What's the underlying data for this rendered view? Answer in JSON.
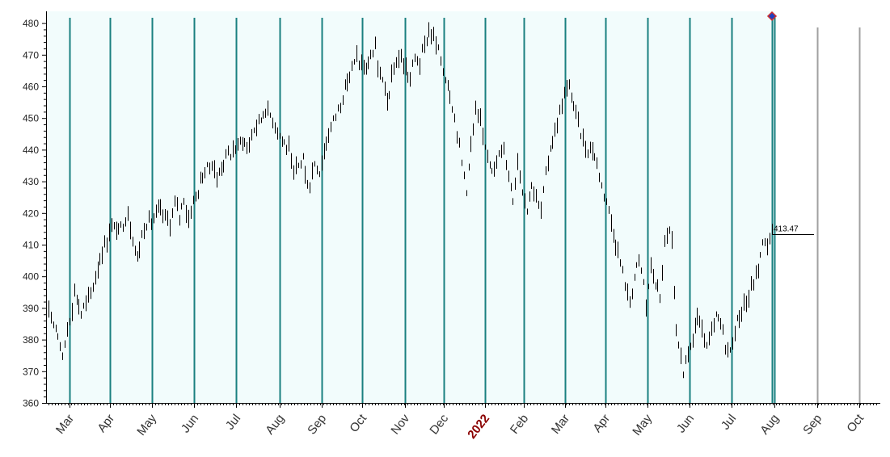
{
  "chart_data": {
    "type": "bar",
    "subtype": "ohlc-daily-range",
    "title": "",
    "xlabel": "",
    "ylabel": "",
    "ylim": [
      360,
      480
    ],
    "yticks": [
      360,
      370,
      380,
      390,
      400,
      410,
      420,
      430,
      440,
      450,
      460,
      470,
      480
    ],
    "grid": "vertical month lines",
    "legend": "none",
    "colors": {
      "plot_background": "#f2fcfc",
      "month_line": "#1a8080",
      "month_line_future": "#a0a0a0",
      "bars": "#000000",
      "axis": "#000000",
      "marker_fill": "#2040c0",
      "marker_outline": "#d03030",
      "year_label": "#8b0000"
    },
    "month_labels": [
      "Mar",
      "Apr",
      "May",
      "Jun",
      "Jul",
      "Aug",
      "Sep",
      "Oct",
      "Nov",
      "Dec",
      "2022",
      "Feb",
      "Mar",
      "Apr",
      "May",
      "Jun",
      "Jul",
      "Aug",
      "Sep",
      "Oct"
    ],
    "month_label_is_year": [
      false,
      false,
      false,
      false,
      false,
      false,
      false,
      false,
      false,
      false,
      true,
      false,
      false,
      false,
      false,
      false,
      false,
      false,
      false,
      false
    ],
    "month_line_future": [
      false,
      false,
      false,
      false,
      false,
      false,
      false,
      false,
      false,
      false,
      false,
      false,
      false,
      false,
      false,
      false,
      false,
      false,
      true,
      true
    ],
    "last_value": "413.47",
    "anchors": [
      [
        0,
        391
      ],
      [
        3,
        386
      ],
      [
        5,
        382
      ],
      [
        7,
        374
      ],
      [
        9,
        384
      ],
      [
        11,
        390
      ],
      [
        12,
        396
      ],
      [
        15,
        388
      ],
      [
        16,
        390
      ],
      [
        20,
        397
      ],
      [
        22,
        404
      ],
      [
        26,
        412
      ],
      [
        28,
        416
      ],
      [
        31,
        414
      ],
      [
        33,
        417
      ],
      [
        35,
        420
      ],
      [
        37,
        412
      ],
      [
        39,
        406
      ],
      [
        41,
        413
      ],
      [
        43,
        417
      ],
      [
        46,
        418
      ],
      [
        48,
        421
      ],
      [
        51,
        419
      ],
      [
        53,
        417
      ],
      [
        55,
        423
      ],
      [
        57,
        419
      ],
      [
        59,
        425
      ],
      [
        61,
        418
      ],
      [
        63,
        424
      ],
      [
        65,
        427
      ],
      [
        67,
        432
      ],
      [
        69,
        434
      ],
      [
        71,
        436
      ],
      [
        73,
        431
      ],
      [
        75,
        435
      ],
      [
        77,
        438
      ],
      [
        79,
        439
      ],
      [
        82,
        441
      ],
      [
        84,
        444
      ],
      [
        86,
        440
      ],
      [
        88,
        445
      ],
      [
        90,
        448
      ],
      [
        92,
        450
      ],
      [
        94,
        453
      ],
      [
        96,
        451
      ],
      [
        98,
        448
      ],
      [
        100,
        445
      ],
      [
        102,
        442
      ],
      [
        104,
        440
      ],
      [
        106,
        432
      ],
      [
        108,
        435
      ],
      [
        110,
        438
      ],
      [
        111,
        431
      ],
      [
        113,
        429
      ],
      [
        115,
        436
      ],
      [
        117,
        433
      ],
      [
        119,
        440
      ],
      [
        121,
        445
      ],
      [
        123,
        449
      ],
      [
        125,
        453
      ],
      [
        127,
        457
      ],
      [
        129,
        462
      ],
      [
        131,
        466
      ],
      [
        133,
        469
      ],
      [
        135,
        467
      ],
      [
        137,
        465
      ],
      [
        139,
        470
      ],
      [
        141,
        472
      ],
      [
        142,
        466
      ],
      [
        144,
        461
      ],
      [
        146,
        456
      ],
      [
        148,
        462
      ],
      [
        150,
        468
      ],
      [
        152,
        470
      ],
      [
        154,
        465
      ],
      [
        156,
        463
      ],
      [
        158,
        469
      ],
      [
        160,
        468
      ],
      [
        162,
        473
      ],
      [
        164,
        478
      ],
      [
        166,
        476
      ],
      [
        168,
        471
      ],
      [
        170,
        465
      ],
      [
        172,
        461
      ],
      [
        174,
        454
      ],
      [
        176,
        446
      ],
      [
        178,
        436
      ],
      [
        180,
        428
      ],
      [
        182,
        441
      ],
      [
        184,
        452
      ],
      [
        186,
        448
      ],
      [
        188,
        442
      ],
      [
        190,
        437
      ],
      [
        192,
        433
      ],
      [
        194,
        438
      ],
      [
        196,
        441
      ],
      [
        198,
        432
      ],
      [
        200,
        425
      ],
      [
        202,
        437
      ],
      [
        204,
        428
      ],
      [
        206,
        421
      ],
      [
        208,
        430
      ],
      [
        210,
        424
      ],
      [
        212,
        421
      ],
      [
        214,
        432
      ],
      [
        216,
        441
      ],
      [
        218,
        446
      ],
      [
        220,
        452
      ],
      [
        222,
        457
      ],
      [
        224,
        460
      ],
      [
        226,
        454
      ],
      [
        228,
        449
      ],
      [
        230,
        443
      ],
      [
        232,
        440
      ],
      [
        234,
        441
      ],
      [
        236,
        435
      ],
      [
        238,
        429
      ],
      [
        240,
        424
      ],
      [
        242,
        418
      ],
      [
        244,
        411
      ],
      [
        246,
        404
      ],
      [
        248,
        398
      ],
      [
        250,
        392
      ],
      [
        252,
        400
      ],
      [
        254,
        405
      ],
      [
        256,
        398
      ],
      [
        257,
        391
      ],
      [
        259,
        403
      ],
      [
        261,
        398
      ],
      [
        263,
        393
      ],
      [
        265,
        411
      ],
      [
        267,
        414
      ],
      [
        268,
        410
      ],
      [
        269,
        393
      ],
      [
        270,
        382
      ],
      [
        272,
        375
      ],
      [
        273,
        370
      ],
      [
        275,
        375
      ],
      [
        277,
        381
      ],
      [
        279,
        387
      ],
      [
        281,
        383
      ],
      [
        283,
        377
      ],
      [
        285,
        382
      ],
      [
        287,
        387
      ],
      [
        289,
        385
      ],
      [
        291,
        379
      ],
      [
        293,
        376
      ],
      [
        295,
        383
      ],
      [
        297,
        388
      ],
      [
        299,
        391
      ],
      [
        301,
        394
      ],
      [
        303,
        398
      ],
      [
        305,
        403
      ],
      [
        307,
        410
      ],
      [
        309,
        411
      ],
      [
        311,
        413.47
      ]
    ]
  }
}
